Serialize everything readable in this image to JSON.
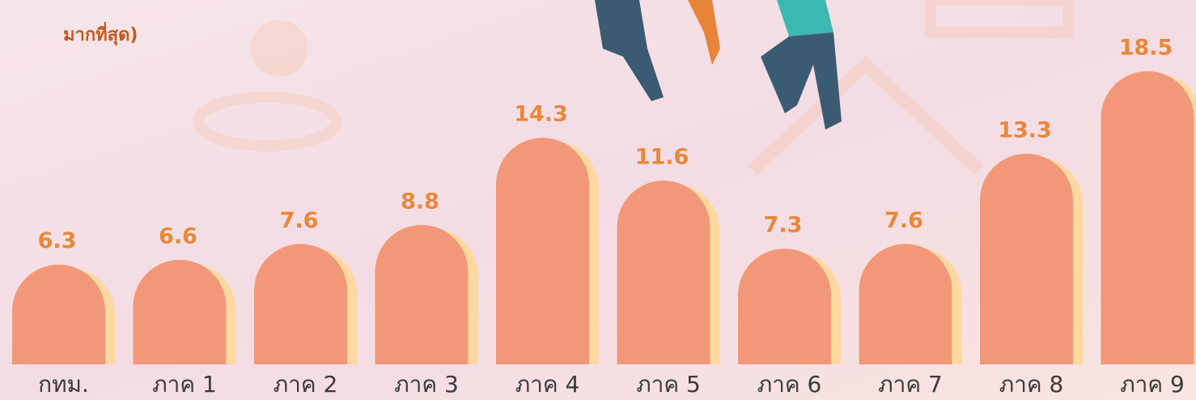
{
  "chart_data": {
    "type": "bar",
    "subtitle": "มากที่สุด)",
    "categories": [
      "กทม.",
      "ภาค 1",
      "ภาค 2",
      "ภาค 3",
      "ภาค 4",
      "ภาค 5",
      "ภาค 6",
      "ภาค 7",
      "ภาค 8",
      "ภาค 9"
    ],
    "values": [
      6.3,
      6.6,
      7.6,
      8.8,
      14.3,
      11.6,
      7.3,
      7.6,
      13.3,
      18.5
    ],
    "color": "#f29878"
  }
}
